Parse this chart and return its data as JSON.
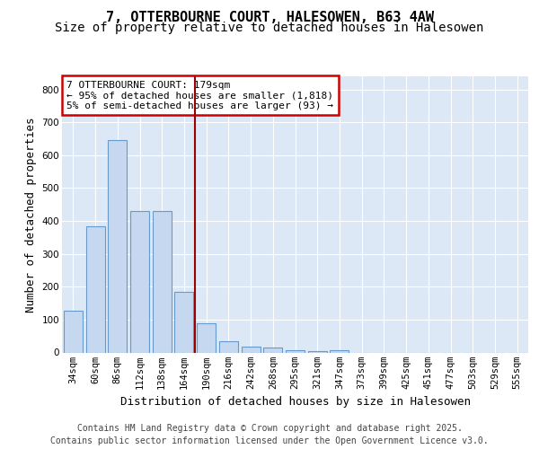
{
  "title": "7, OTTERBOURNE COURT, HALESOWEN, B63 4AW",
  "subtitle": "Size of property relative to detached houses in Halesowen",
  "xlabel": "Distribution of detached houses by size in Halesowen",
  "ylabel": "Number of detached properties",
  "bar_labels": [
    "34sqm",
    "60sqm",
    "86sqm",
    "112sqm",
    "138sqm",
    "164sqm",
    "190sqm",
    "216sqm",
    "242sqm",
    "268sqm",
    "295sqm",
    "321sqm",
    "347sqm",
    "373sqm",
    "399sqm",
    "425sqm",
    "451sqm",
    "477sqm",
    "503sqm",
    "529sqm",
    "555sqm"
  ],
  "bar_values": [
    128,
    383,
    645,
    430,
    430,
    185,
    90,
    35,
    18,
    15,
    8,
    5,
    8,
    0,
    0,
    0,
    0,
    0,
    0,
    0,
    0
  ],
  "bar_color": "#c5d8f0",
  "bar_edge_color": "#6699cc",
  "vline_x_index": 6,
  "vline_color": "#990000",
  "ylim": [
    0,
    840
  ],
  "yticks": [
    0,
    100,
    200,
    300,
    400,
    500,
    600,
    700,
    800
  ],
  "annotation_title": "7 OTTERBOURNE COURT: 179sqm",
  "annotation_line1": "← 95% of detached houses are smaller (1,818)",
  "annotation_line2": "5% of semi-detached houses are larger (93) →",
  "annotation_box_facecolor": "#ffffff",
  "annotation_box_edgecolor": "#cc0000",
  "footer_line1": "Contains HM Land Registry data © Crown copyright and database right 2025.",
  "footer_line2": "Contains public sector information licensed under the Open Government Licence v3.0.",
  "axes_facecolor": "#dce8f5",
  "figure_facecolor": "#ffffff",
  "grid_color": "#ffffff",
  "title_fontsize": 11,
  "subtitle_fontsize": 10,
  "axis_label_fontsize": 9,
  "tick_fontsize": 7.5,
  "annotation_fontsize": 8,
  "footer_fontsize": 7
}
